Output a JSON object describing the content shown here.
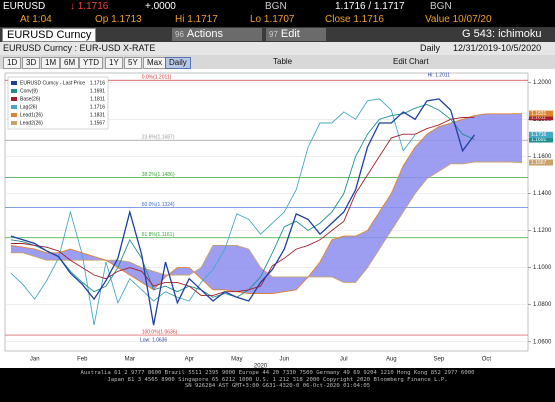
{
  "header": {
    "ticker": "EURUSD",
    "last": "↓ 1.1716",
    "change": "+.0000",
    "src1": "BGN",
    "bid_ask": "1.1716 / 1.1717",
    "src2": "BGN",
    "at": "At 1:04",
    "open": "Op 1.1713",
    "high": "Hi 1.1717",
    "low": "Lo 1.1707",
    "close": "Close 1.1716",
    "value": "Value 10/07/20"
  },
  "titlebar": {
    "security": "EURUSD Curncy",
    "actions_num": "96",
    "actions": "Actions",
    "edit_num": "97",
    "edit": "Edit",
    "page": "G 543: ichimoku"
  },
  "subtitle": {
    "name": "EURUSD Curncy : EUR-USD X-RATE",
    "period": "Daily",
    "range": "12/31/2019-10/5/2020"
  },
  "toolbar": [
    "1D",
    "3D",
    "1M",
    "6M",
    "YTD",
    "1Y",
    "5Y",
    "Max",
    "Daily",
    "Table",
    "Edit Chart"
  ],
  "footer": [
    "Australia 61 2 9777 8600 Brazil 5511 2395 9000 Europe 44 20 7330 7500 Germany 49 69 9204 1210 Hong Kong 852 2977 6000",
    "Japan 81 3 4565 8900 Singapore 65 6212 1000 U.S. 1 212 318 2000 Copyright 2020 Bloomberg Finance L.P.",
    "SN 926284 AST GMT+3:00 G631-4320-0 06-Oct-2020 01:04:05"
  ],
  "chart_data": {
    "type": "line",
    "xlabel": "2020",
    "categories": [
      null,
      null,
      "Jan",
      null,
      null,
      null,
      "Feb",
      null,
      null,
      null,
      "Mar",
      null,
      null,
      null,
      null,
      "Apr",
      null,
      null,
      null,
      "May",
      null,
      null,
      null,
      "Jun",
      null,
      null,
      null,
      null,
      "Jul",
      null,
      null,
      null,
      "Aug",
      null,
      null,
      null,
      "Sep",
      null,
      null,
      null,
      "Oct",
      null,
      null,
      null
    ],
    "ylim": [
      1.055,
      1.205
    ],
    "yticks": [
      {
        "value": 1.06,
        "label": "1.0600"
      },
      {
        "value": 1.08,
        "label": "1.0800"
      },
      {
        "value": 1.1,
        "label": "1.1000"
      },
      {
        "value": 1.12,
        "label": "1.1200"
      },
      {
        "value": 1.14,
        "label": "1.1400"
      },
      {
        "value": 1.16,
        "label": "1.1600"
      },
      {
        "value": 1.18,
        "label": "1.1800"
      },
      {
        "value": 1.2,
        "label": "1.2000"
      }
    ],
    "grid": true,
    "series": [
      {
        "name": "EURUSD Curncy - Last Price",
        "last": 1.1716,
        "color": "#1f3fa0",
        "values": [
          1.117,
          1.115,
          1.113,
          1.109,
          1.106,
          1.097,
          1.091,
          1.083,
          1.093,
          1.105,
          1.13,
          1.107,
          1.069,
          1.103,
          1.081,
          1.094,
          1.088,
          1.082,
          1.087,
          1.084,
          1.082,
          1.092,
          1.099,
          1.11,
          1.129,
          1.126,
          1.118,
          1.124,
          1.13,
          1.142,
          1.165,
          1.178,
          1.178,
          1.184,
          1.18,
          1.19,
          1.191,
          1.185,
          1.163,
          1.1716,
          null,
          null,
          null,
          null
        ]
      },
      {
        "name": "Conv(9)",
        "last": 1.1691,
        "color": "#1d8f8f",
        "values": [
          1.115,
          1.114,
          1.112,
          1.109,
          1.106,
          1.098,
          1.092,
          1.087,
          1.09,
          1.1,
          1.115,
          1.105,
          1.088,
          1.09,
          1.087,
          1.09,
          1.088,
          1.084,
          1.086,
          1.084,
          1.088,
          1.095,
          1.108,
          1.122,
          1.125,
          1.12,
          1.124,
          1.13,
          1.14,
          1.16,
          1.172,
          1.18,
          1.182,
          1.183,
          1.186,
          1.188,
          1.185,
          1.18,
          1.172,
          1.1691,
          null,
          null,
          null,
          null
        ]
      },
      {
        "name": "Base(26)",
        "last": 1.1811,
        "color": "#a3202b",
        "values": [
          1.113,
          1.113,
          1.112,
          1.111,
          1.109,
          1.104,
          1.1,
          1.096,
          1.094,
          1.098,
          1.1,
          1.098,
          1.09,
          1.092,
          1.092,
          1.09,
          1.085,
          1.085,
          1.087,
          1.087,
          1.088,
          1.09,
          1.101,
          1.105,
          1.11,
          1.112,
          1.115,
          1.12,
          1.125,
          1.14,
          1.15,
          1.16,
          1.17,
          1.172,
          1.172,
          1.175,
          1.177,
          1.18,
          1.181,
          1.1811,
          null,
          null,
          null,
          null
        ]
      },
      {
        "name": "Lag(26)",
        "last": 1.1716,
        "color": "#46a9c4",
        "values": [
          1.097,
          1.091,
          1.083,
          1.093,
          1.105,
          1.13,
          1.107,
          1.069,
          1.103,
          1.081,
          1.094,
          1.088,
          1.082,
          1.087,
          1.084,
          1.082,
          1.092,
          1.099,
          1.11,
          1.129,
          1.126,
          1.118,
          1.124,
          1.13,
          1.142,
          1.165,
          1.178,
          1.178,
          1.184,
          1.18,
          1.19,
          1.191,
          1.185,
          1.163,
          1.1716,
          null,
          null,
          null,
          null,
          null,
          null,
          null,
          null,
          null
        ]
      },
      {
        "name": "Lead1(26)",
        "last": 1.1831,
        "color": "#e0822f",
        "values": [
          1.112,
          1.111,
          1.11,
          1.108,
          1.108,
          1.11,
          1.108,
          1.106,
          1.104,
          1.1,
          1.096,
          1.092,
          1.088,
          1.095,
          1.1,
          1.1,
          1.094,
          1.088,
          1.088,
          1.087,
          1.086,
          1.086,
          1.086,
          1.087,
          1.088,
          1.095,
          1.103,
          1.115,
          1.117,
          1.117,
          1.12,
          1.13,
          1.14,
          1.155,
          1.165,
          1.172,
          1.176,
          1.178,
          1.18,
          1.182,
          1.183,
          1.183,
          1.183,
          1.1831
        ]
      },
      {
        "name": "Lead2(26)",
        "last": 1.1567,
        "color": "#c9a26a",
        "values": [
          1.108,
          1.108,
          1.106,
          1.104,
          1.104,
          1.104,
          1.104,
          1.104,
          1.104,
          1.104,
          1.103,
          1.1,
          1.098,
          1.096,
          1.096,
          1.096,
          1.1,
          1.112,
          1.112,
          1.112,
          1.11,
          1.1,
          1.095,
          1.095,
          1.095,
          1.095,
          1.095,
          1.095,
          1.092,
          1.092,
          1.1,
          1.11,
          1.12,
          1.13,
          1.14,
          1.148,
          1.152,
          1.156,
          1.156,
          1.157,
          1.157,
          1.157,
          1.157,
          1.1567
        ]
      }
    ],
    "cloud_color": "#8c8cf0",
    "fib": [
      {
        "label": "0.0%(1.2011)",
        "value": 1.2011,
        "color": "#d23a3a"
      },
      {
        "label": "23.6%(1.1687)",
        "value": 1.1687,
        "color": "#9a9a9a"
      },
      {
        "label": "38.2%(1.1486)",
        "value": 1.1486,
        "color": "#3aa53a"
      },
      {
        "label": "50.0%(1.1324)",
        "value": 1.1324,
        "color": "#3a6ad2"
      },
      {
        "label": "61.8%(1.1161)",
        "value": 1.1161,
        "color": "#3aa53a"
      },
      {
        "label": "100.0%(1.0636)",
        "value": 1.0636,
        "color": "#d23a3a"
      }
    ],
    "annotations": [
      {
        "text": "Hi: 1.2011",
        "value": 1.2011
      },
      {
        "text": "Low: 1.0636",
        "value": 1.0636
      }
    ]
  }
}
